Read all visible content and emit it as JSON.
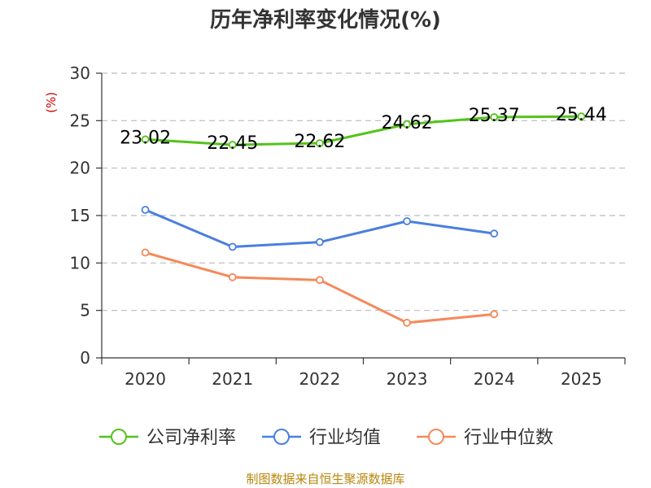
{
  "chart_data": {
    "type": "line",
    "title": "历年净利率变化情况(%)",
    "ylabel": "(%)",
    "xlabel": "",
    "categories": [
      "2020",
      "2021",
      "2022",
      "2023",
      "2024",
      "2025"
    ],
    "ylim": [
      0,
      30
    ],
    "yticks": [
      0,
      5,
      10,
      15,
      20,
      25,
      30
    ],
    "grid": true,
    "legend_position": "bottom",
    "series": [
      {
        "name": "公司净利率",
        "color": "#52c41a",
        "show_labels": true,
        "values": [
          23.02,
          22.45,
          22.62,
          24.62,
          25.37,
          25.44
        ],
        "labels": [
          "23.02",
          "22.45",
          "22.62",
          "24.62",
          "25.37",
          "25.44"
        ]
      },
      {
        "name": "行业均值",
        "color": "#4a7fe0",
        "show_labels": false,
        "values": [
          15.6,
          11.7,
          12.2,
          14.4,
          13.1,
          null
        ]
      },
      {
        "name": "行业中位数",
        "color": "#f5895a",
        "show_labels": false,
        "values": [
          11.1,
          8.5,
          8.2,
          3.7,
          4.6,
          null
        ]
      }
    ],
    "source": "制图数据来自恒生聚源数据库"
  }
}
